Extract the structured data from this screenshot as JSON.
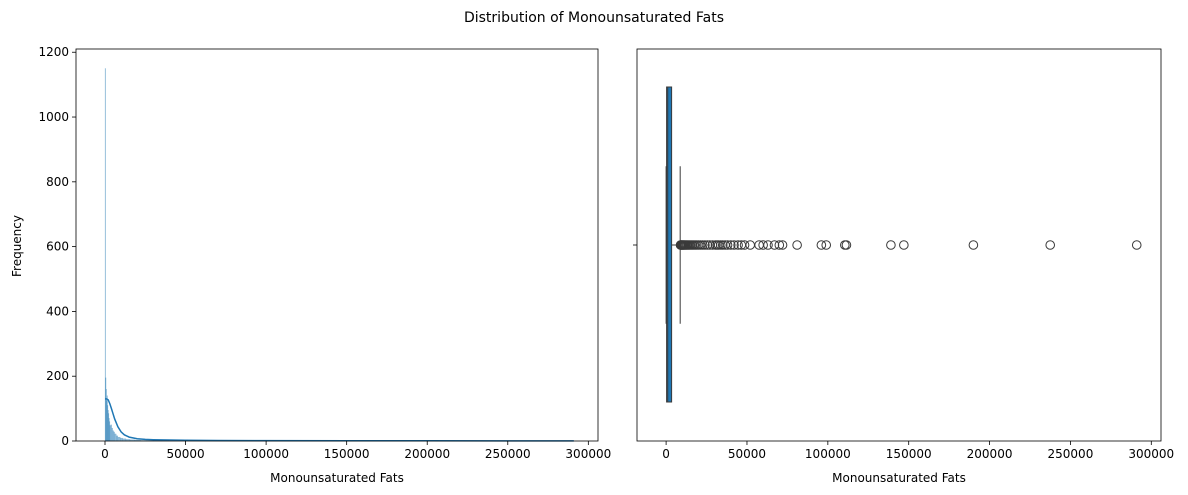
{
  "figure": {
    "suptitle": "Distribution of Monounsaturated Fats"
  },
  "chart_data": [
    {
      "type": "histogram",
      "xlabel": "Monounsaturated Fats",
      "ylabel": "Frequency",
      "xlim": [
        -18000,
        306000
      ],
      "ylim": [
        0,
        1210
      ],
      "xticks": [
        0,
        50000,
        100000,
        150000,
        200000,
        250000,
        300000
      ],
      "xtick_labels": [
        "0",
        "50000",
        "100000",
        "150000",
        "200000",
        "250000",
        "300000"
      ],
      "yticks": [
        0,
        200,
        400,
        600,
        800,
        1000,
        1200
      ],
      "ytick_labels": [
        "0",
        "200",
        "400",
        "600",
        "800",
        "1000",
        "1200"
      ],
      "bar_color": "#1f77b4",
      "bins": [
        {
          "x0": 0,
          "x1": 300,
          "count": 1150
        },
        {
          "x0": 300,
          "x1": 600,
          "count": 195
        },
        {
          "x0": 600,
          "x1": 900,
          "count": 160
        },
        {
          "x0": 900,
          "x1": 1200,
          "count": 125
        },
        {
          "x0": 1200,
          "x1": 1500,
          "count": 140
        },
        {
          "x0": 1500,
          "x1": 1800,
          "count": 110
        },
        {
          "x0": 1800,
          "x1": 2100,
          "count": 95
        },
        {
          "x0": 2100,
          "x1": 2400,
          "count": 85
        },
        {
          "x0": 2400,
          "x1": 2700,
          "count": 70
        },
        {
          "x0": 2700,
          "x1": 3000,
          "count": 60
        },
        {
          "x0": 3000,
          "x1": 3600,
          "count": 48
        },
        {
          "x0": 3600,
          "x1": 4200,
          "count": 50
        },
        {
          "x0": 4200,
          "x1": 4800,
          "count": 40
        },
        {
          "x0": 4800,
          "x1": 5400,
          "count": 32
        },
        {
          "x0": 5400,
          "x1": 6000,
          "count": 28
        },
        {
          "x0": 6000,
          "x1": 7000,
          "count": 22
        },
        {
          "x0": 7000,
          "x1": 8000,
          "count": 16
        },
        {
          "x0": 8000,
          "x1": 9500,
          "count": 12
        },
        {
          "x0": 9500,
          "x1": 11000,
          "count": 9
        },
        {
          "x0": 11000,
          "x1": 13000,
          "count": 7
        },
        {
          "x0": 13000,
          "x1": 15500,
          "count": 5
        },
        {
          "x0": 15500,
          "x1": 18500,
          "count": 4
        },
        {
          "x0": 18500,
          "x1": 22000,
          "count": 3
        },
        {
          "x0": 22000,
          "x1": 26000,
          "count": 2
        },
        {
          "x0": 26000,
          "x1": 30000,
          "count": 2
        },
        {
          "x0": 30000,
          "x1": 35000,
          "count": 1
        },
        {
          "x0": 35000,
          "x1": 40000,
          "count": 1
        }
      ],
      "kde": {
        "color": "#1f77b4",
        "x": [
          0,
          1000,
          2000,
          3000,
          4000,
          5000,
          6000,
          8000,
          10000,
          12000,
          15000,
          20000,
          25000,
          30000,
          40000,
          50000,
          70000,
          100000,
          150000,
          200000,
          250000,
          291000
        ],
        "y": [
          130,
          130,
          127,
          115,
          100,
          84,
          68,
          44,
          28,
          19,
          12,
          7,
          5,
          4,
          3,
          2.2,
          1.5,
          1,
          0.8,
          0.6,
          0.5,
          0.4
        ]
      }
    },
    {
      "type": "box",
      "xlabel": "Monounsaturated Fats",
      "xlim": [
        -18000,
        306000
      ],
      "xticks": [
        0,
        50000,
        100000,
        150000,
        200000,
        250000,
        300000
      ],
      "xtick_labels": [
        "0",
        "50000",
        "100000",
        "150000",
        "200000",
        "250000",
        "300000"
      ],
      "box_color": "#1f77b4",
      "q1": 300,
      "median": 1000,
      "q3": 3400,
      "whisker_low": 0,
      "whisker_high": 8700,
      "outliers": [
        8900,
        9200,
        9500,
        9800,
        10200,
        10600,
        11000,
        11500,
        12000,
        12600,
        13200,
        13900,
        14600,
        15400,
        16200,
        17100,
        18000,
        19000,
        20100,
        21300,
        22600,
        24000,
        25500,
        27000,
        28700,
        30500,
        31500,
        32500,
        33800,
        35000,
        36500,
        38000,
        40000,
        42000,
        44500,
        46500,
        48500,
        52000,
        57500,
        60000,
        63000,
        67000,
        70000,
        72000,
        81000,
        96000,
        99000,
        110500,
        111500,
        139000,
        147000,
        190000,
        237500,
        291000
      ]
    }
  ]
}
